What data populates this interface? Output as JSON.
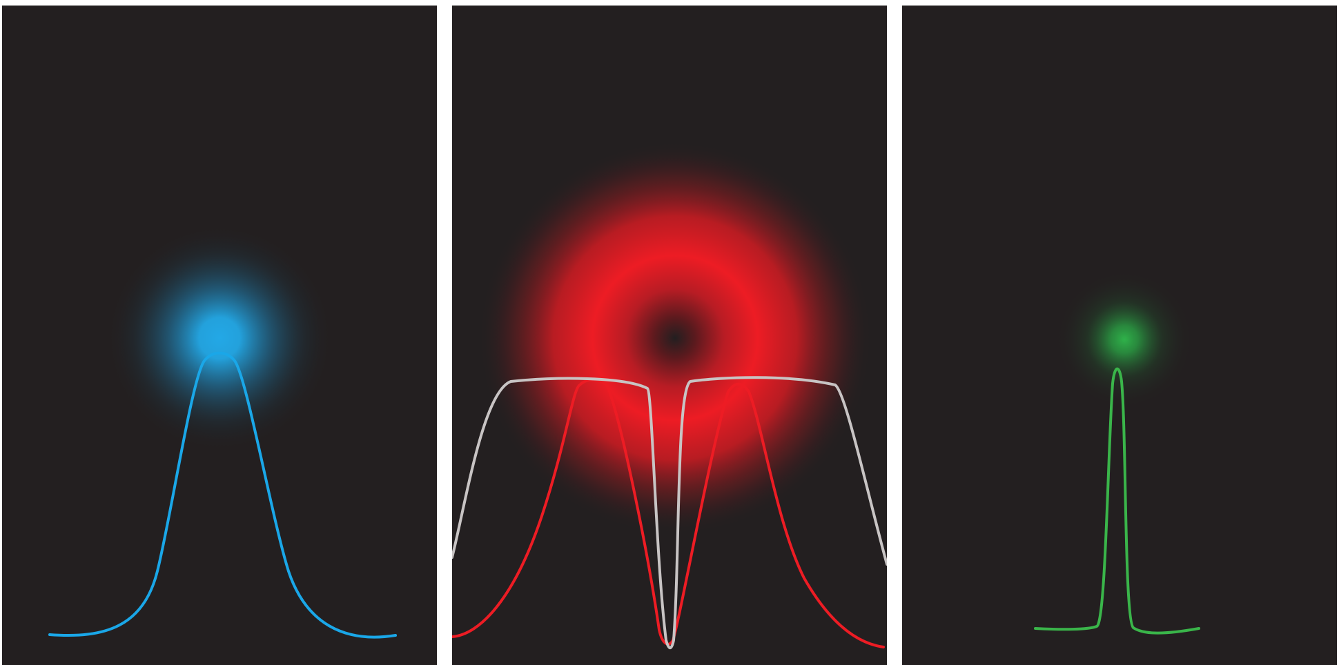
{
  "colors": {
    "background": "#ffffff",
    "panel": "#231f20",
    "excitation": "#1aa7e8",
    "excitation_glow": "#23a8e6",
    "depletion": "#ed1c24",
    "depletion_saturated": "#c8c4c4",
    "effective": "#3ab54a",
    "effective_glow": "#2fb24a"
  },
  "panels": [
    {
      "name": "excitation-panel",
      "spot": "gaussian",
      "color": "excitation"
    },
    {
      "name": "depletion-panel",
      "spot": "donut",
      "color": "depletion"
    },
    {
      "name": "effective-panel",
      "spot": "narrow-gaussian",
      "color": "effective"
    }
  ]
}
